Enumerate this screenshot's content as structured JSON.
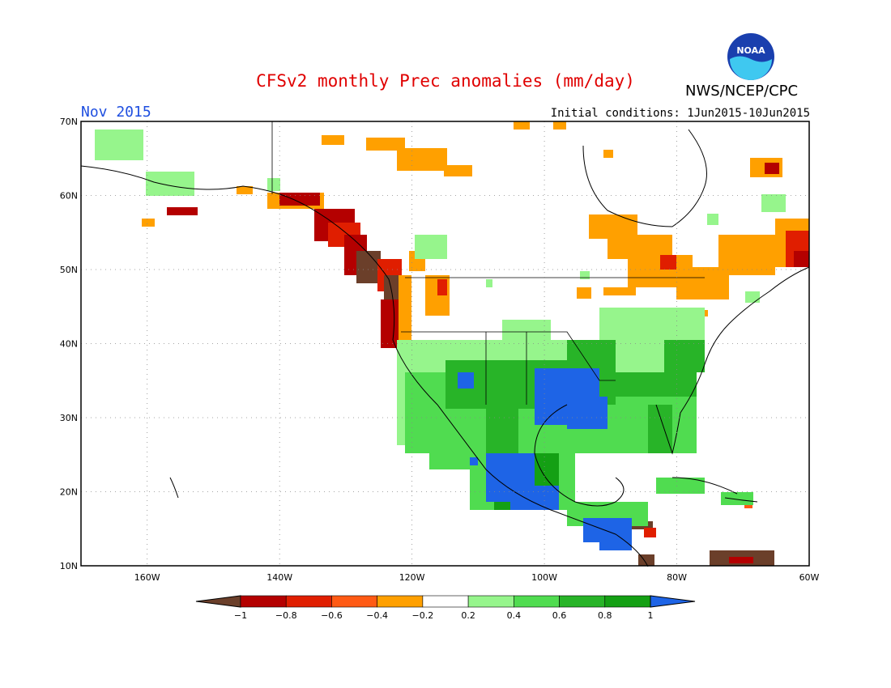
{
  "header": {
    "title": "CFSv2 monthly Prec anomalies (mm/day)",
    "valid_month": "Nov 2015",
    "initial_conditions": "Initial conditions: 1Jun2015-10Jun2015",
    "agency": "NWS/NCEP/CPC",
    "logo_text": "NOAA"
  },
  "colors": {
    "title": "#e00000",
    "month": "#1f4fe0",
    "logo_outer": "#1a3fae",
    "logo_inner": "#3fc8f0"
  },
  "map": {
    "lat_labels": [
      "70N",
      "60N",
      "50N",
      "40N",
      "30N",
      "20N",
      "10N"
    ],
    "lon_labels": [
      "160W",
      "140W",
      "120W",
      "100W",
      "80W",
      "60W"
    ],
    "lon_range": [
      -170,
      -60
    ],
    "lat_range": [
      10,
      70
    ]
  },
  "colorbar": {
    "labels": [
      "−1",
      "−0.8",
      "−0.6",
      "−0.4",
      "−0.2",
      "0.2",
      "0.4",
      "0.6",
      "0.8",
      "1"
    ],
    "colors": [
      "#6b3f2a",
      "#b40000",
      "#e01e00",
      "#ff5a14",
      "#ffa000",
      "#ffffff",
      "#96f58c",
      "#50dc50",
      "#28b428",
      "#14a014",
      "#1e64e6"
    ]
  }
}
